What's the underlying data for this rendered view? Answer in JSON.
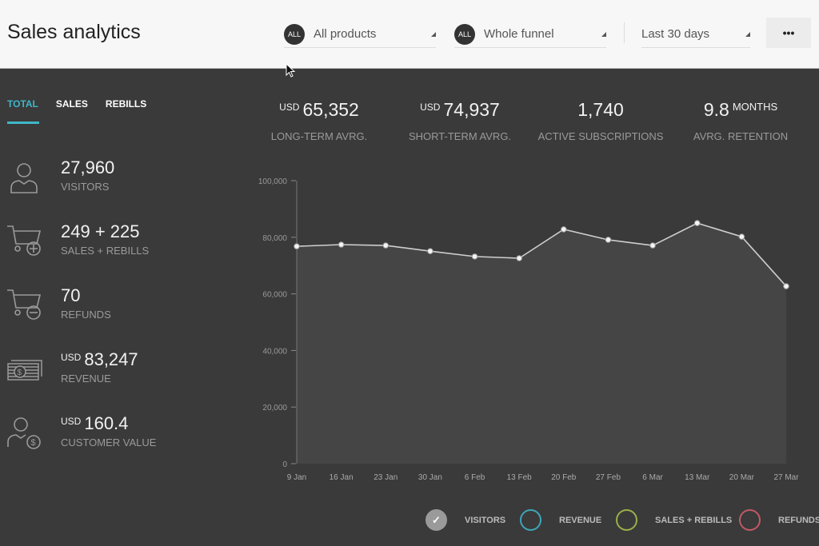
{
  "header": {
    "title": "Sales analytics",
    "filters": [
      {
        "badge": "ALL",
        "label": "All products"
      },
      {
        "badge": "ALL",
        "label": "Whole funnel"
      },
      {
        "label": "Last 30 days"
      }
    ],
    "more_label": "•••"
  },
  "tabs": [
    {
      "label": "TOTAL",
      "active": true
    },
    {
      "label": "SALES"
    },
    {
      "label": "REBILLS"
    }
  ],
  "stats": [
    {
      "icon": "user-icon",
      "value": "27,960",
      "label": "VISITORS"
    },
    {
      "icon": "cart-plus-icon",
      "value": "249 + 225",
      "label": "SALES + REBILLS"
    },
    {
      "icon": "cart-minus-icon",
      "value": "70",
      "label": "REFUNDS"
    },
    {
      "icon": "money-stack-icon",
      "currency": "USD",
      "value": "83,247",
      "label": "REVENUE"
    },
    {
      "icon": "user-dollar-icon",
      "currency": "USD",
      "value": "160.4",
      "label": "CUSTOMER VALUE"
    }
  ],
  "kpis": [
    {
      "currency": "USD",
      "value": "65,352",
      "label": "LONG-TERM AVRG."
    },
    {
      "currency": "USD",
      "value": "74,937",
      "label": "SHORT-TERM AVRG."
    },
    {
      "value": "1,740",
      "label": "ACTIVE SUBSCRIPTIONS"
    },
    {
      "value": "9.8",
      "unit": "MONTHS",
      "label": "AVRG. RETENTION"
    }
  ],
  "legend": [
    {
      "label": "VISITORS",
      "color": "#9a9a9a",
      "checked": true
    },
    {
      "label": "REVENUE",
      "color": "#3fa6b8",
      "checked": false
    },
    {
      "label": "SALES + REBILLS",
      "color": "#9ab04a",
      "checked": false
    },
    {
      "label": "REFUNDS",
      "color": "#c05a66",
      "checked": false
    }
  ],
  "chart_data": {
    "type": "area",
    "categories": [
      "9 Jan",
      "16 Jan",
      "23 Jan",
      "30 Jan",
      "6 Feb",
      "13 Feb",
      "20 Feb",
      "27 Feb",
      "6 Mar",
      "13 Mar",
      "20 Mar",
      "27 Mar"
    ],
    "series": [
      {
        "name": "VISITORS",
        "values": [
          76800,
          77400,
          77100,
          75100,
          73200,
          72600,
          82800,
          79100,
          77100,
          85000,
          80200,
          62700
        ]
      }
    ],
    "yticks": [
      "0",
      "20,000",
      "40,000",
      "60,000",
      "80,000",
      "100,000"
    ],
    "ylim": [
      0,
      100000
    ],
    "grid": false
  }
}
